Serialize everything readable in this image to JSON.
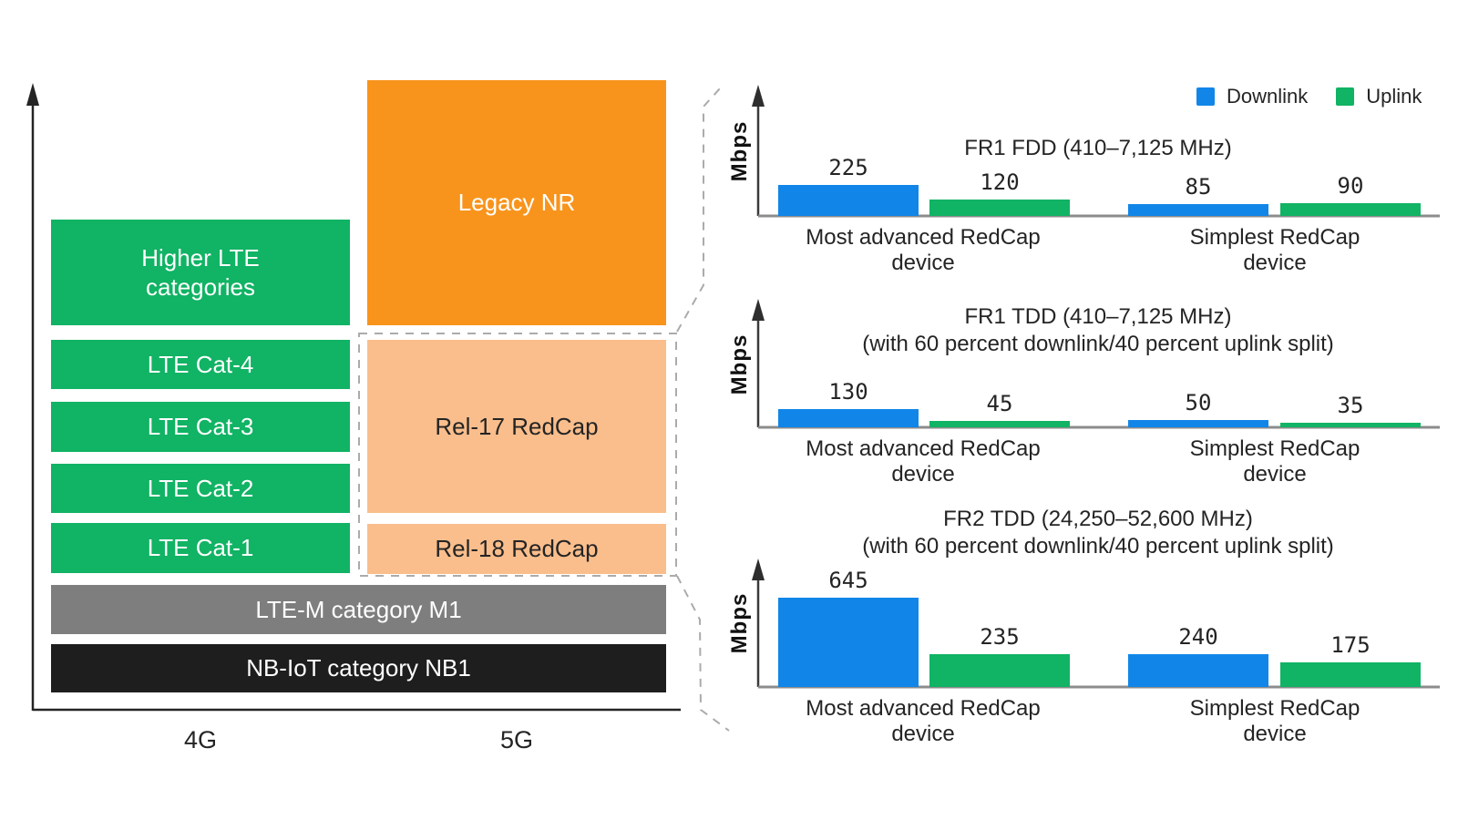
{
  "left_panel": {
    "boxes": {
      "higher_lte": "Higher LTE categories",
      "legacy_nr": "Legacy NR",
      "lte_cat4": "LTE Cat-4",
      "lte_cat3": "LTE Cat-3",
      "lte_cat2": "LTE Cat-2",
      "lte_cat1": "LTE Cat-1",
      "rel17_redcap": "Rel-17 RedCap",
      "rel18_redcap": "Rel-18 RedCap",
      "lte_m": "LTE-M category M1",
      "nb_iot": "NB-IoT category NB1"
    },
    "x_axis": {
      "label_4g": "4G",
      "label_5g": "5G"
    }
  },
  "legend": {
    "downlink": "Downlink",
    "uplink": "Uplink"
  },
  "colors": {
    "downlink_blue": "#1186E8",
    "uplink_green": "#11B364",
    "legacy_nr_orange": "#F8941C",
    "redcap_orange": "#FABE8C",
    "lte_m_gray": "#7E7E7E",
    "nb_iot_black": "#1E1E1E",
    "dashed_line_gray": "#ABABAB",
    "text_dark": "#242424"
  },
  "chart_data": [
    {
      "type": "bar",
      "title": "FR1 FDD (410–7,125 MHz)",
      "subtitle": "",
      "ylabel": "Mbps",
      "categories": [
        "Most advanced RedCap device",
        "Simplest RedCap device"
      ],
      "series": [
        {
          "name": "Downlink",
          "color": "#1186E8",
          "values": [
            225,
            85
          ]
        },
        {
          "name": "Uplink",
          "color": "#11B364",
          "values": [
            120,
            90
          ]
        }
      ],
      "legend_position": "top-right",
      "grid": false
    },
    {
      "type": "bar",
      "title": "FR1 TDD (410–7,125 MHz)",
      "subtitle": "(with 60 percent downlink/40 percent uplink split)",
      "ylabel": "Mbps",
      "categories": [
        "Most advanced RedCap device",
        "Simplest RedCap device"
      ],
      "series": [
        {
          "name": "Downlink",
          "color": "#1186E8",
          "values": [
            130,
            50
          ]
        },
        {
          "name": "Uplink",
          "color": "#11B364",
          "values": [
            45,
            35
          ]
        }
      ],
      "grid": false
    },
    {
      "type": "bar",
      "title": "FR2 TDD (24,250–52,600 MHz)",
      "subtitle": "(with 60 percent downlink/40 percent uplink split)",
      "ylabel": "Mbps",
      "categories": [
        "Most advanced RedCap device",
        "Simplest RedCap device"
      ],
      "series": [
        {
          "name": "Downlink",
          "color": "#1186E8",
          "values": [
            645,
            240
          ]
        },
        {
          "name": "Uplink",
          "color": "#11B364",
          "values": [
            235,
            175
          ]
        }
      ],
      "grid": false
    }
  ]
}
